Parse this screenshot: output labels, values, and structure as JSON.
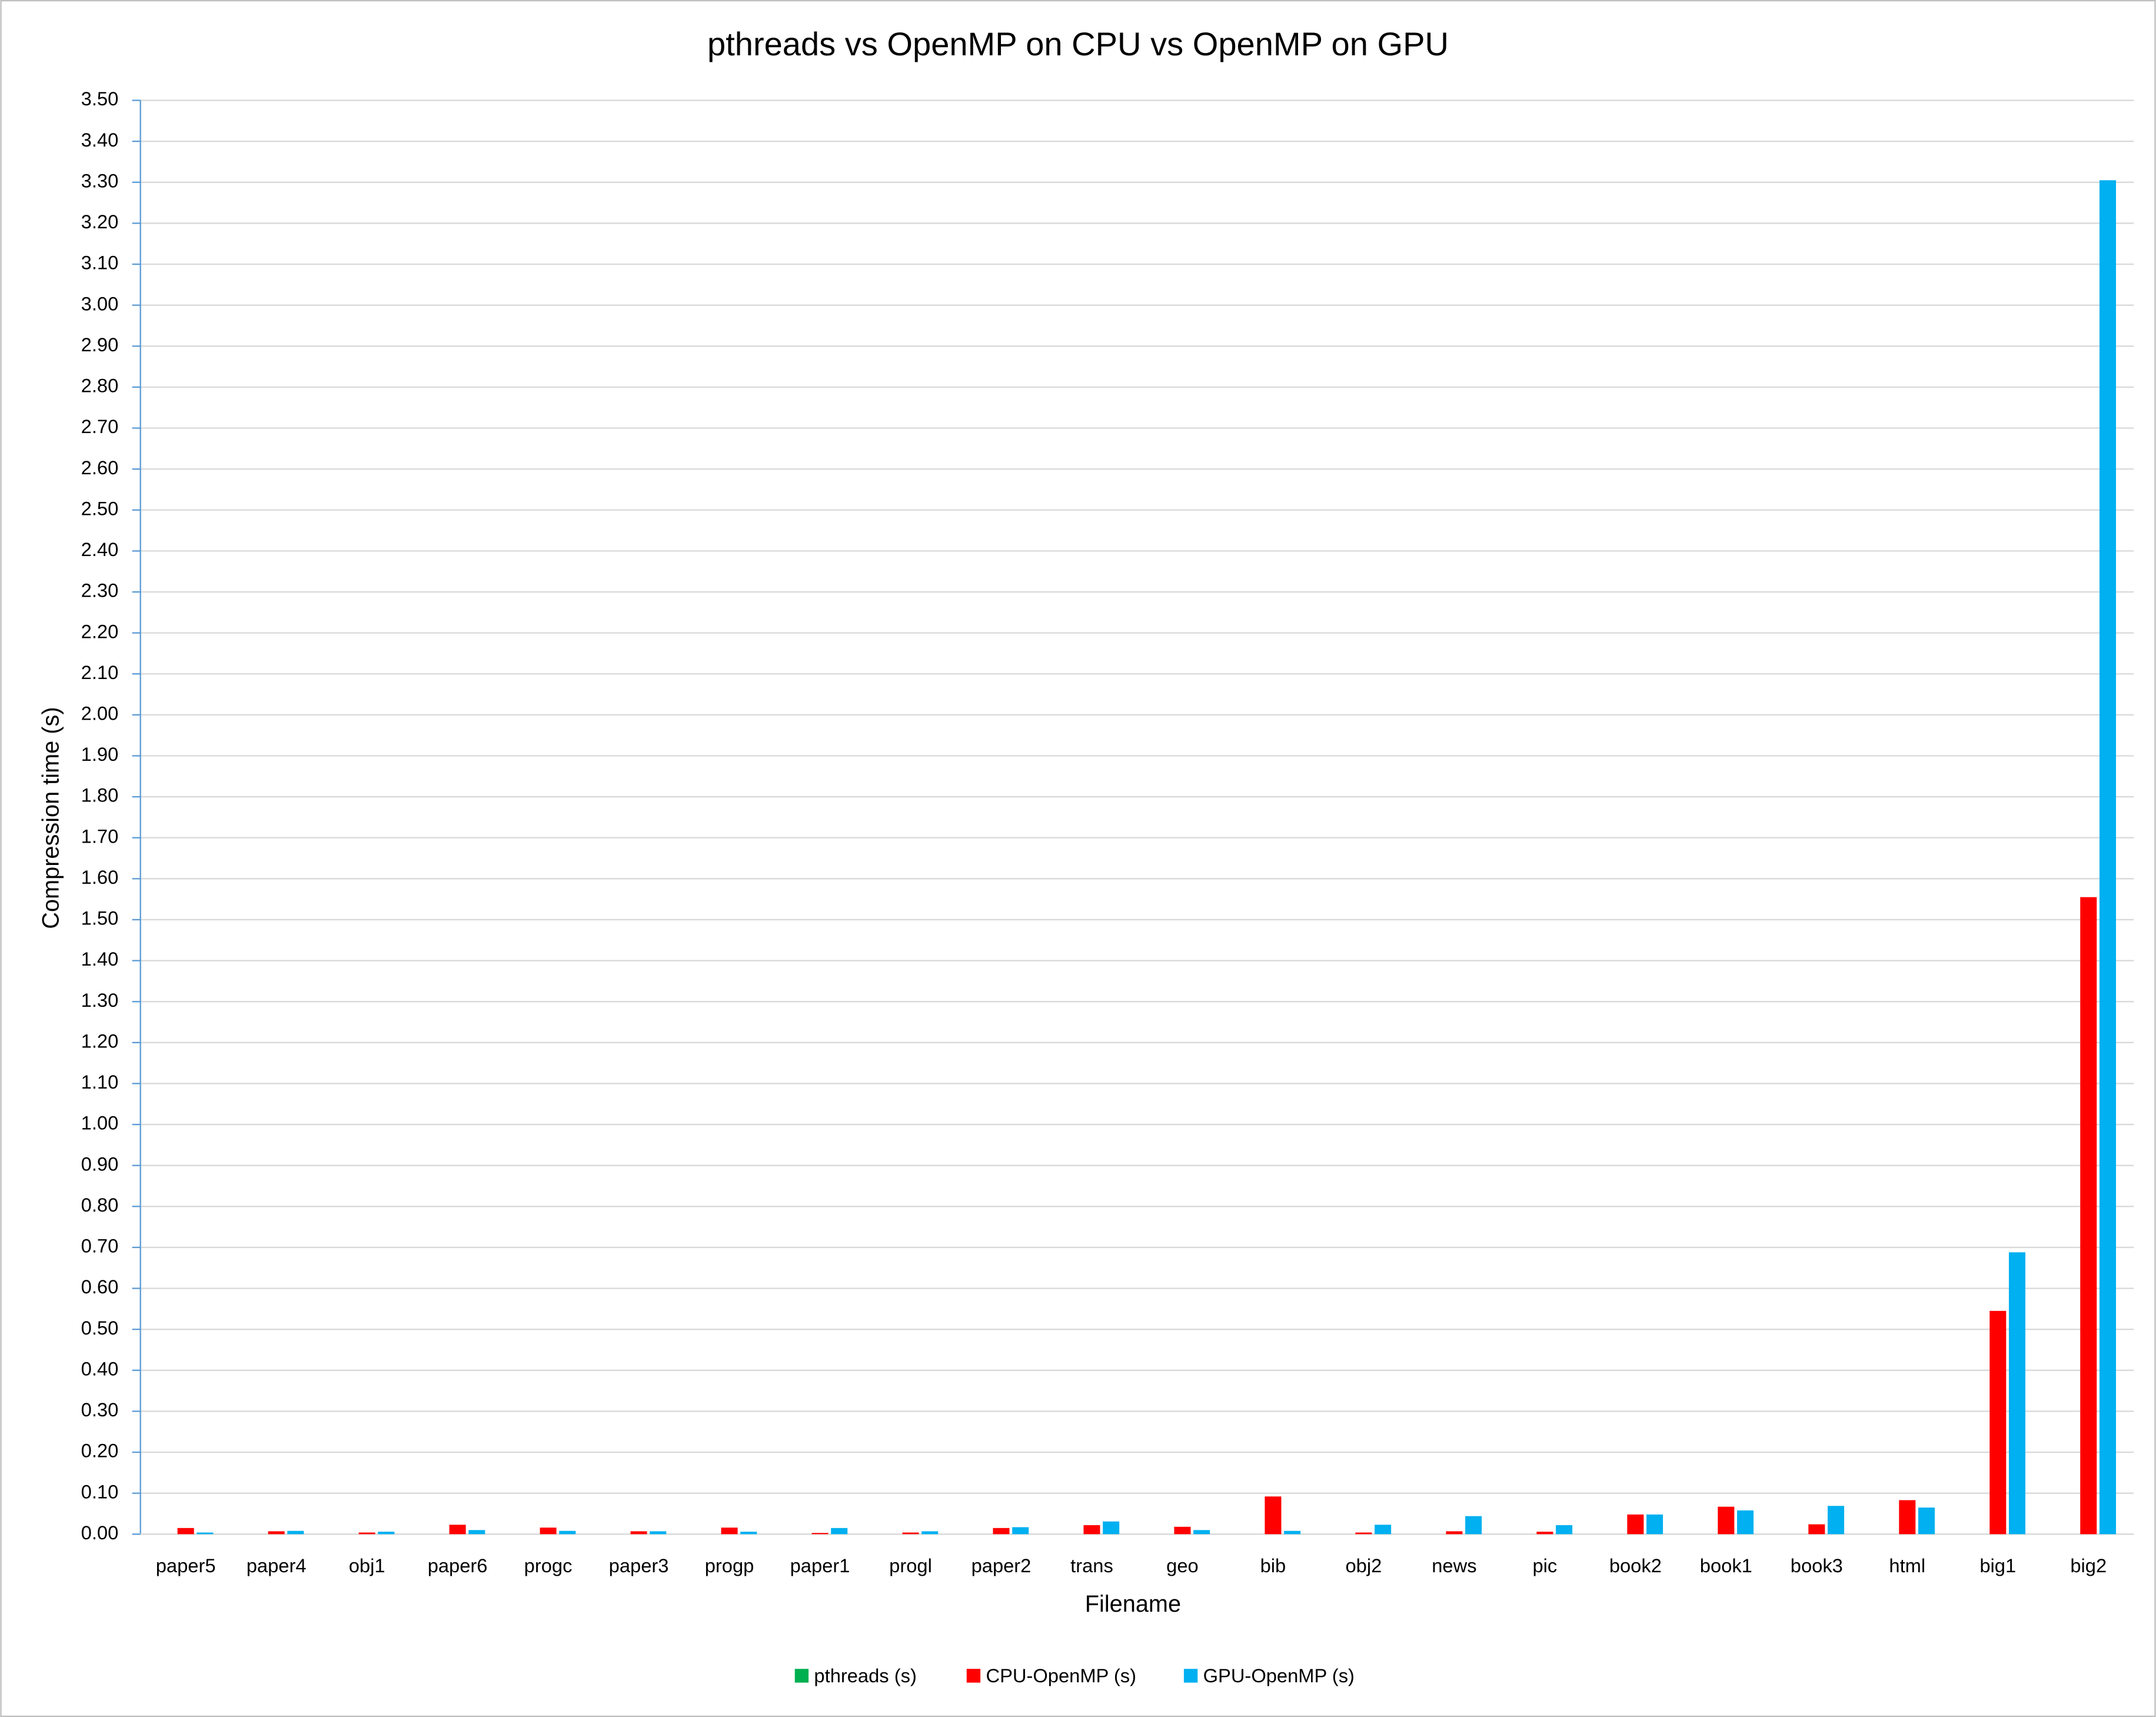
{
  "chart_data": {
    "type": "bar",
    "title": "pthreads vs OpenMP on CPU vs OpenMP on GPU",
    "x_label": "Filename",
    "y_label": "Compression time (s)",
    "categories": [
      "paper5",
      "paper4",
      "obj1",
      "paper6",
      "progc",
      "paper3",
      "progp",
      "paper1",
      "progl",
      "paper2",
      "trans",
      "geo",
      "bib",
      "obj2",
      "news",
      "pic",
      "book2",
      "book1",
      "book3",
      "html",
      "big1",
      "big2"
    ],
    "series": [
      {
        "name": "pthreads (s)",
        "color": "#00b050",
        "values": [
          0,
          0,
          0,
          0,
          0,
          0,
          0,
          0,
          0,
          0,
          0,
          0,
          0,
          0,
          0,
          0,
          0,
          0,
          0,
          0,
          0,
          0
        ]
      },
      {
        "name": "CPU-OpenMP (s)",
        "color": "#ff0000",
        "values": [
          0.015,
          0.007,
          0.004,
          0.023,
          0.016,
          0.007,
          0.016,
          0.003,
          0.004,
          0.015,
          0.022,
          0.018,
          0.092,
          0.004,
          0.007,
          0.006,
          0.048,
          0.067,
          0.024,
          0.083,
          0.545,
          1.555
        ]
      },
      {
        "name": "GPU-OpenMP (s)",
        "color": "#00b0f0",
        "values": [
          0.004,
          0.008,
          0.006,
          0.01,
          0.008,
          0.007,
          0.006,
          0.015,
          0.007,
          0.017,
          0.031,
          0.01,
          0.008,
          0.023,
          0.044,
          0.022,
          0.048,
          0.058,
          0.069,
          0.065,
          0.688,
          3.305
        ]
      }
    ],
    "ylim": [
      0,
      3.5
    ],
    "yticks": [
      {
        "value": 0,
        "label": "0.00"
      },
      {
        "value": 0.1,
        "label": "0.10"
      },
      {
        "value": 0.2,
        "label": "0.20"
      },
      {
        "value": 0.3,
        "label": "0.30"
      },
      {
        "value": 0.4,
        "label": "0.40"
      },
      {
        "value": 0.5,
        "label": "0.50"
      },
      {
        "value": 0.6,
        "label": "0.60"
      },
      {
        "value": 0.7,
        "label": "0.70"
      },
      {
        "value": 0.8,
        "label": "0.80"
      },
      {
        "value": 0.9,
        "label": "0.90"
      },
      {
        "value": 1,
        "label": "1.00"
      },
      {
        "value": 1.1,
        "label": "1.10"
      },
      {
        "value": 1.2,
        "label": "1.20"
      },
      {
        "value": 1.3,
        "label": "1.30"
      },
      {
        "value": 1.4,
        "label": "1.40"
      },
      {
        "value": 1.5,
        "label": "1.50"
      },
      {
        "value": 1.6,
        "label": "1.60"
      },
      {
        "value": 1.7,
        "label": "1.70"
      },
      {
        "value": 1.8,
        "label": "1.80"
      },
      {
        "value": 1.9,
        "label": "1.90"
      },
      {
        "value": 2,
        "label": "2.00"
      },
      {
        "value": 2.1,
        "label": "2.10"
      },
      {
        "value": 2.2,
        "label": "2.20"
      },
      {
        "value": 2.3,
        "label": "2.30"
      },
      {
        "value": 2.4,
        "label": "2.40"
      },
      {
        "value": 2.5,
        "label": "2.50"
      },
      {
        "value": 2.6,
        "label": "2.60"
      },
      {
        "value": 2.7,
        "label": "2.70"
      },
      {
        "value": 2.8,
        "label": "2.80"
      },
      {
        "value": 2.9,
        "label": "2.90"
      },
      {
        "value": 3,
        "label": "3.00"
      },
      {
        "value": 3.1,
        "label": "3.10"
      },
      {
        "value": 3.2,
        "label": "3.20"
      },
      {
        "value": 3.3,
        "label": "3.30"
      },
      {
        "value": 3.4,
        "label": "3.40"
      },
      {
        "value": 3.5,
        "label": "3.50"
      }
    ],
    "grid": true,
    "legend": "bottom"
  }
}
